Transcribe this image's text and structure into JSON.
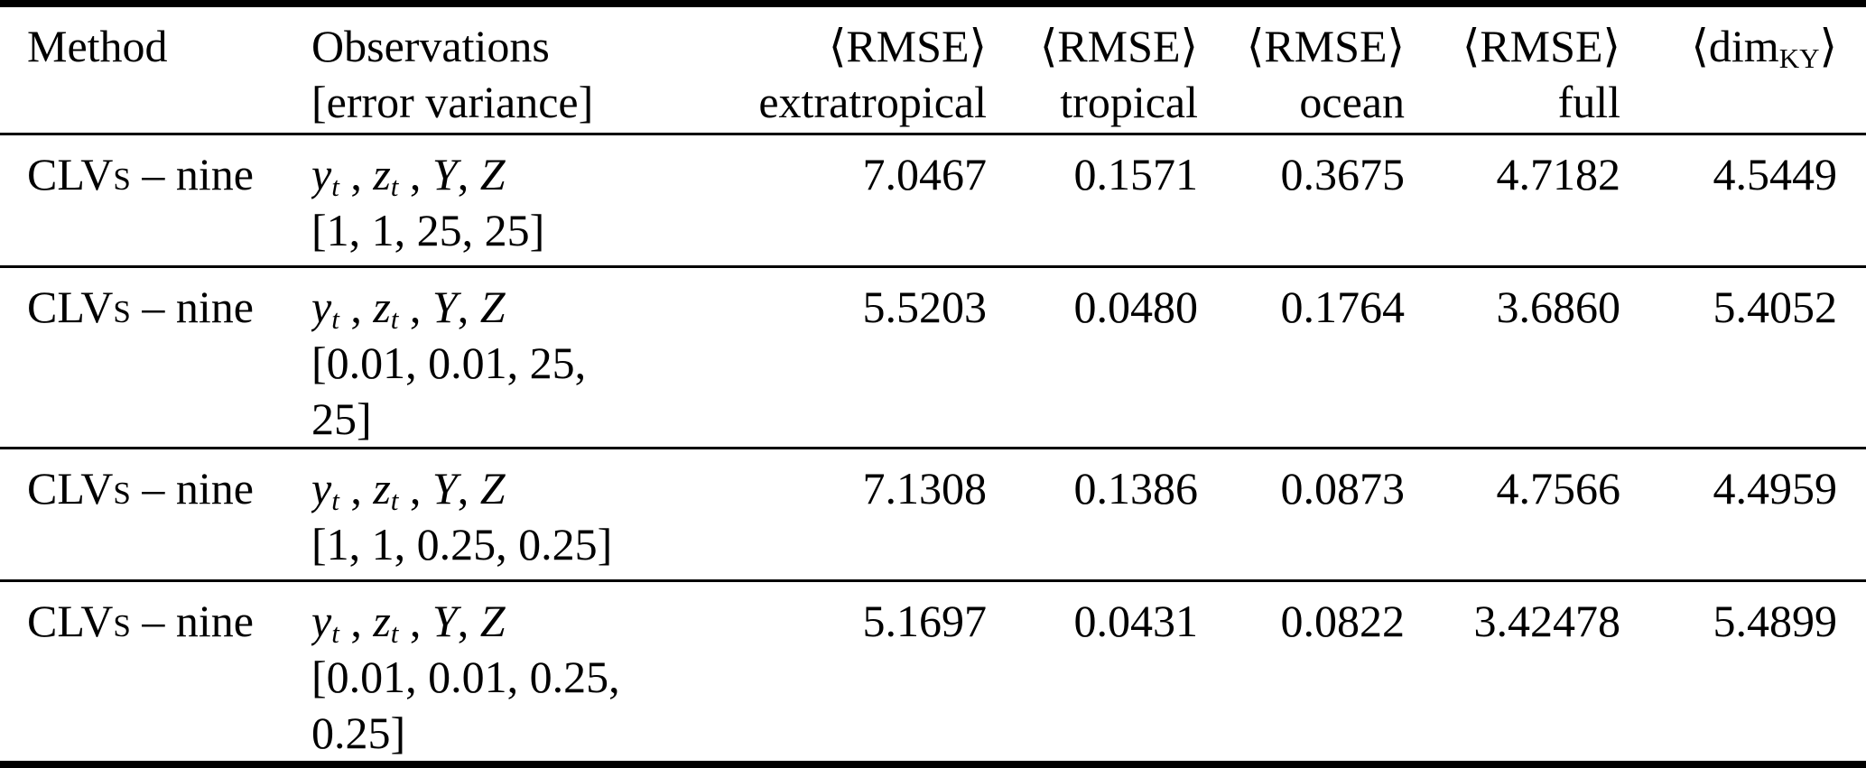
{
  "page": {
    "background": "#ffffff",
    "text_color": "#000000",
    "rule_color": "#000000"
  },
  "table": {
    "header": {
      "method": "Method",
      "observations_line1": "Observations",
      "observations_line2": "[error variance]",
      "rmse_label": "⟨RMSE⟩",
      "rmse_sublabels": [
        "extratropical",
        "tropical",
        "ocean",
        "full"
      ],
      "dim_pre": "⟨dim",
      "dim_sub": "KY",
      "dim_post": "⟩"
    },
    "rows": [
      {
        "method_name": "CLVs",
        "method_suffix": "– nine",
        "obs_math": [
          {
            "text": "y",
            "italic": true,
            "sub": "t"
          },
          {
            "text": " , "
          },
          {
            "text": "z",
            "italic": true,
            "sub": "t"
          },
          {
            "text": " , "
          },
          {
            "text": "Y",
            "italic": true
          },
          {
            "text": ", "
          },
          {
            "text": "Z",
            "italic": true
          }
        ],
        "error_variance": "[1, 1, 25, 25]",
        "values": {
          "extratropical": "7.0467",
          "tropical": "0.1571",
          "ocean": "0.3675",
          "full": "4.7182",
          "dim_ky": "4.5449"
        }
      },
      {
        "method_name": "CLVs",
        "method_suffix": "– nine",
        "obs_math": [
          {
            "text": "y",
            "italic": true,
            "sub": "t"
          },
          {
            "text": " , "
          },
          {
            "text": "z",
            "italic": true,
            "sub": "t"
          },
          {
            "text": " , "
          },
          {
            "text": "Y",
            "italic": true
          },
          {
            "text": ", "
          },
          {
            "text": "Z",
            "italic": true
          }
        ],
        "error_variance": "[0.01, 0.01, 25, 25]",
        "values": {
          "extratropical": "5.5203",
          "tropical": "0.0480",
          "ocean": "0.1764",
          "full": "3.6860",
          "dim_ky": "5.4052"
        }
      },
      {
        "method_name": "CLVs",
        "method_suffix": "– nine",
        "obs_math": [
          {
            "text": "y",
            "italic": true,
            "sub": "t"
          },
          {
            "text": " , "
          },
          {
            "text": "z",
            "italic": true,
            "sub": "t"
          },
          {
            "text": " , "
          },
          {
            "text": "Y",
            "italic": true
          },
          {
            "text": ", "
          },
          {
            "text": "Z",
            "italic": true
          }
        ],
        "error_variance": "[1, 1, 0.25, 0.25]",
        "values": {
          "extratropical": "7.1308",
          "tropical": "0.1386",
          "ocean": "0.0873",
          "full": "4.7566",
          "dim_ky": "4.4959"
        }
      },
      {
        "method_name": "CLVs",
        "method_suffix": "– nine",
        "obs_math": [
          {
            "text": "y",
            "italic": true,
            "sub": "t"
          },
          {
            "text": " , "
          },
          {
            "text": "z",
            "italic": true,
            "sub": "t"
          },
          {
            "text": " , "
          },
          {
            "text": "Y",
            "italic": true
          },
          {
            "text": ", "
          },
          {
            "text": "Z",
            "italic": true
          }
        ],
        "error_variance": "[0.01, 0.01, 0.25, 0.25]",
        "values": {
          "extratropical": "5.1697",
          "tropical": "0.0431",
          "ocean": "0.0822",
          "full": "3.42478",
          "dim_ky": "5.4899"
        }
      }
    ]
  }
}
